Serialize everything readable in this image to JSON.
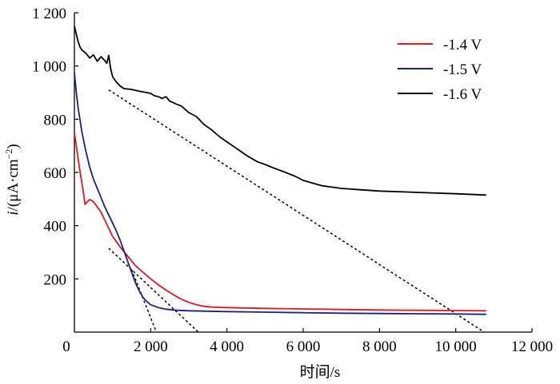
{
  "chart_data": {
    "type": "line",
    "xlabel": "时间/s",
    "ylabel": {
      "italic": "i",
      "rest": "/(μA·cm",
      "sup": "−2",
      "close": ")"
    },
    "xlim": [
      0,
      12000
    ],
    "ylim": [
      0,
      1200
    ],
    "xticks": [
      0,
      2000,
      4000,
      6000,
      8000,
      10000,
      12000
    ],
    "xtick_labels": [
      "0",
      "2 000",
      "4 000",
      "6 000",
      "8 000",
      "10 000",
      "12 000"
    ],
    "yticks": [
      200,
      400,
      600,
      800,
      1000,
      1200
    ],
    "ytick_labels": [
      "200",
      "400",
      "600",
      "800",
      "1 000",
      "1 200"
    ],
    "grid": false,
    "legend_position": "top-right",
    "series": [
      {
        "name": "-1.4 V",
        "color": "#e8141b",
        "x": [
          0,
          80,
          150,
          220,
          280,
          340,
          400,
          460,
          520,
          600,
          700,
          800,
          900,
          1000,
          1200,
          1400,
          1600,
          1800,
          2000,
          2200,
          2400,
          2600,
          2800,
          3000,
          3200,
          3400,
          3600,
          4000,
          5000,
          6000,
          7000,
          8000,
          9000,
          10000,
          10800
        ],
        "y": [
          750,
          670,
          600,
          540,
          480,
          490,
          498,
          494,
          486,
          470,
          450,
          420,
          390,
          360,
          320,
          285,
          250,
          225,
          200,
          178,
          158,
          140,
          124,
          112,
          103,
          97,
          94,
          92,
          89,
          87,
          85,
          83,
          82,
          81,
          80
        ]
      },
      {
        "name": "-1.5 V",
        "color": "#1a237e",
        "x": [
          0,
          50,
          100,
          200,
          300,
          400,
          500,
          600,
          700,
          800,
          900,
          1000,
          1100,
          1200,
          1300,
          1400,
          1500,
          1600,
          1700,
          1800,
          1900,
          2000,
          2200,
          2400,
          2700,
          3000,
          4000,
          5000,
          6000,
          7000,
          8000,
          9000,
          10000,
          10800
        ],
        "y": [
          975,
          900,
          840,
          750,
          680,
          620,
          575,
          540,
          505,
          470,
          440,
          410,
          380,
          345,
          305,
          265,
          225,
          185,
          155,
          130,
          115,
          103,
          92,
          86,
          82,
          80,
          77,
          75,
          73,
          71,
          70,
          69,
          68,
          67
        ]
      },
      {
        "name": "-1.6 V",
        "color": "#000000",
        "x": [
          0,
          50,
          100,
          150,
          200,
          300,
          400,
          500,
          600,
          700,
          800,
          850,
          900,
          950,
          1000,
          1100,
          1200,
          1300,
          1500,
          1700,
          1900,
          2000,
          2100,
          2200,
          2300,
          2400,
          2500,
          2600,
          2700,
          2800,
          3000,
          3200,
          3400,
          3600,
          3800,
          4000,
          4200,
          4500,
          4800,
          5000,
          5200,
          5500,
          5800,
          6000,
          6500,
          7000,
          7500,
          8000,
          9000,
          10000,
          10800
        ],
        "y": [
          1150,
          1120,
          1090,
          1070,
          1060,
          1048,
          1030,
          1042,
          1018,
          1035,
          1020,
          1010,
          1040,
          990,
          960,
          940,
          925,
          915,
          912,
          905,
          900,
          897,
          888,
          885,
          878,
          885,
          868,
          862,
          855,
          850,
          825,
          810,
          780,
          760,
          735,
          715,
          695,
          665,
          640,
          630,
          618,
          602,
          585,
          570,
          550,
          540,
          535,
          530,
          525,
          520,
          515
        ]
      }
    ],
    "tangent_lines": [
      {
        "color": "#000000",
        "x": [
          900,
          10750
        ],
        "y": [
          910,
          0
        ]
      },
      {
        "color": "#000000",
        "x": [
          900,
          3250
        ],
        "y": [
          315,
          0
        ]
      },
      {
        "color": "#000000",
        "x": [
          1500,
          2150
        ],
        "y": [
          235,
          0
        ]
      }
    ]
  }
}
